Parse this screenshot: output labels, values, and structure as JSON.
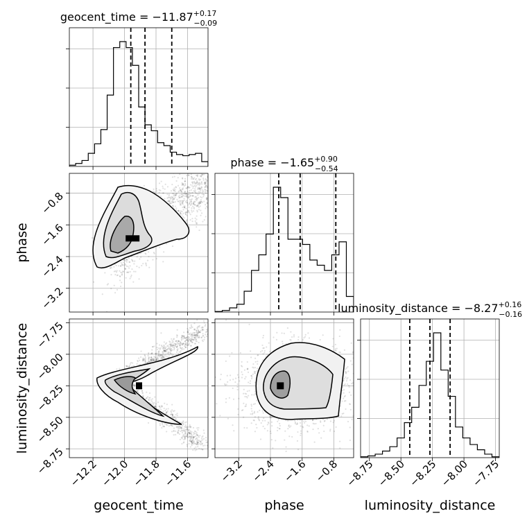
{
  "chart_data": {
    "type": "corner",
    "parameters": [
      "geocent_time",
      "phase",
      "luminosity_distance"
    ],
    "grid": true,
    "ranges": {
      "geocent_time": [
        -12.35,
        -11.47
      ],
      "phase": [
        -3.8,
        -0.3
      ],
      "luminosity_distance": [
        -8.82,
        -7.72
      ]
    },
    "ticks": {
      "geocent_time": [
        "−12.2",
        "−12.0",
        "−11.8",
        "−11.6"
      ],
      "phase": [
        "−3.2",
        "−2.4",
        "−1.6",
        "−0.8"
      ],
      "luminosity_distance": [
        "−8.75",
        "−8.50",
        "−8.25",
        "−8.00",
        "−7.75"
      ]
    },
    "tick_values": {
      "geocent_time": [
        -12.2,
        -12.0,
        -11.8,
        -11.6
      ],
      "phase": [
        -3.2,
        -2.4,
        -1.6,
        -0.8
      ],
      "luminosity_distance": [
        -8.75,
        -8.5,
        -8.25,
        -8.0,
        -7.75
      ]
    },
    "axis_labels": {
      "geocent_time": "geocent_time",
      "phase": "phase",
      "luminosity_distance": "luminosity_distance"
    },
    "titles": [
      {
        "param": "geocent_time",
        "prefix": "geocent_time = ",
        "value": "−11.87",
        "plus": "+0.17",
        "minus": "−0.09"
      },
      {
        "param": "phase",
        "prefix": "phase = ",
        "value": "−1.65",
        "plus": "+0.90",
        "minus": "−0.54"
      },
      {
        "param": "luminosity_distance",
        "prefix": "luminosity_distance = ",
        "value": "−8.27",
        "plus": "+0.16",
        "minus": "−0.16"
      }
    ],
    "quantiles": {
      "geocent_time": [
        -11.96,
        -11.87,
        -11.7
      ],
      "phase": [
        -2.19,
        -1.65,
        -0.75
      ],
      "luminosity_distance": [
        -8.43,
        -8.27,
        -8.11
      ]
    },
    "histograms": {
      "geocent_time": {
        "edges_range": [
          -12.35,
          -11.47
        ],
        "counts": [
          0.2,
          0.5,
          1.0,
          2.2,
          3.8,
          6.2,
          12.0,
          20.0,
          21.0,
          20.0,
          17.0,
          10.0,
          7.0,
          6.0,
          4.0,
          3.5,
          2.4,
          2.0,
          1.8,
          2.0,
          2.2,
          0.8
        ]
      },
      "phase": {
        "edges_range": [
          -3.8,
          -0.3
        ],
        "counts": [
          0.1,
          0.3,
          0.8,
          1.5,
          4.0,
          8.0,
          11.0,
          15.0,
          24.0,
          22.0,
          14.0,
          14.0,
          13.0,
          10.0,
          9.0,
          8.0,
          11.0,
          13.5,
          3.0
        ]
      },
      "luminosity_distance": {
        "edges_range": [
          -8.82,
          -7.72
        ],
        "counts": [
          0.2,
          0.4,
          0.8,
          1.5,
          2.5,
          4.5,
          8.0,
          11.5,
          16.5,
          22.0,
          28.5,
          20.0,
          14.0,
          7.0,
          4.5,
          3.0,
          1.8,
          0.8,
          0.2
        ]
      }
    },
    "joint": [
      {
        "x": "geocent_time",
        "y": "phase",
        "mode": {
          "x": -11.94,
          "y": -1.95
        },
        "description_points": [
          {
            "x": -11.95,
            "y": -1.98
          },
          {
            "x": -11.85,
            "y": -1.85
          },
          {
            "x": -11.7,
            "y": -1.3
          },
          {
            "x": -11.55,
            "y": -1.0
          }
        ]
      },
      {
        "x": "geocent_time",
        "y": "luminosity_distance",
        "mode": {
          "x": -11.91,
          "y": -8.25
        }
      },
      {
        "x": "phase",
        "y": "luminosity_distance",
        "mode": {
          "x": -2.15,
          "y": -8.25
        }
      }
    ]
  }
}
